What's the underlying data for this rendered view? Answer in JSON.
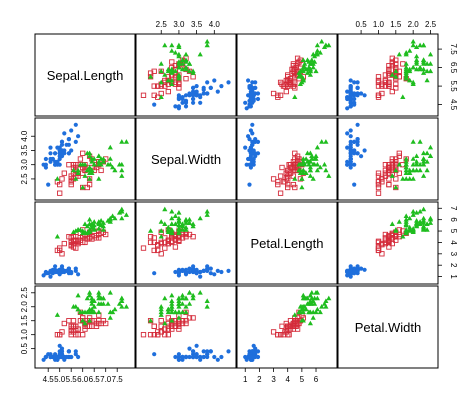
{
  "chart_data": {
    "type": "scatter",
    "layout": "scatterplot-matrix",
    "variables": [
      "Sepal.Length",
      "Sepal.Width",
      "Petal.Length",
      "Petal.Width"
    ],
    "axes": {
      "Sepal.Length": {
        "range": [
          4.1,
          8.1
        ],
        "ticks": [
          4.5,
          5.5,
          6.5,
          7.5
        ],
        "tick_labels": [
          "4.5",
          "5.5",
          "6.5",
          "7.5"
        ]
      },
      "Sepal.Width": {
        "range": [
          1.9,
          4.5
        ],
        "ticks": [
          2.5,
          3.0,
          3.5,
          4.0
        ],
        "tick_labels": [
          "2.5",
          "3.0",
          "3.5",
          "4.0"
        ]
      },
      "Petal.Length": {
        "range": [
          0.7,
          7.2
        ],
        "ticks": [
          1,
          2,
          3,
          4,
          5,
          6,
          7
        ],
        "tick_labels": [
          "1",
          "2",
          "3",
          "4",
          "5",
          "6",
          "7"
        ]
      },
      "Petal.Width": {
        "range": [
          -0.05,
          2.6
        ],
        "ticks": [
          0.5,
          1.0,
          1.5,
          2.0,
          2.5
        ],
        "tick_labels": [
          "0.5",
          "1.0",
          "1.5",
          "2.0",
          "2.5"
        ]
      }
    },
    "tick_sides": {
      "bottom": [
        0,
        2
      ],
      "top": [
        1,
        3
      ],
      "left": [
        1,
        3
      ],
      "right": [
        0,
        2
      ]
    },
    "bottom_tick_labels": {
      "0": [
        "4.5",
        "5.0",
        "5.5",
        "6.0",
        "6.5",
        "7.0",
        "7.5"
      ],
      "2": [
        "1",
        "2",
        "3",
        "4",
        "5",
        "6"
      ]
    },
    "bottom_ticks": {
      "0": [
        4.5,
        5.0,
        5.5,
        6.0,
        6.5,
        7.0,
        7.5
      ],
      "2": [
        1,
        2,
        3,
        4,
        5,
        6
      ]
    },
    "left_tick_labels": {
      "1": [
        "2.5",
        "3.0",
        "3.5",
        "4.0"
      ],
      "3": [
        "0.5",
        "1.0",
        "1.5",
        "2.0",
        "2.5"
      ]
    },
    "right_tick_labels": {
      "0": [
        "4.5",
        "5.5",
        "6.5",
        "7.5"
      ],
      "2": [
        "1",
        "2",
        "3",
        "4",
        "5",
        "6",
        "7"
      ]
    },
    "top_tick_labels": {
      "1": [
        "2.5",
        "3.0",
        "3.5",
        "4.0"
      ],
      "3": [
        "0.5",
        "1.0",
        "1.5",
        "2.0",
        "2.5"
      ]
    },
    "series": [
      {
        "marker": "filled-circle",
        "color": "#1f6fdc",
        "points": [
          [
            5.1,
            3.5,
            1.4,
            0.2
          ],
          [
            4.9,
            3.0,
            1.4,
            0.2
          ],
          [
            4.7,
            3.2,
            1.3,
            0.2
          ],
          [
            4.6,
            3.1,
            1.5,
            0.2
          ],
          [
            5.0,
            3.6,
            1.4,
            0.2
          ],
          [
            5.4,
            3.9,
            1.7,
            0.4
          ],
          [
            4.6,
            3.4,
            1.4,
            0.3
          ],
          [
            5.0,
            3.4,
            1.5,
            0.2
          ],
          [
            4.4,
            2.9,
            1.4,
            0.2
          ],
          [
            4.9,
            3.1,
            1.5,
            0.1
          ],
          [
            5.4,
            3.7,
            1.5,
            0.2
          ],
          [
            4.8,
            3.4,
            1.6,
            0.2
          ],
          [
            4.8,
            3.0,
            1.4,
            0.1
          ],
          [
            4.3,
            3.0,
            1.1,
            0.1
          ],
          [
            5.8,
            4.0,
            1.2,
            0.2
          ],
          [
            5.7,
            4.4,
            1.5,
            0.4
          ],
          [
            5.4,
            3.9,
            1.3,
            0.4
          ],
          [
            5.1,
            3.5,
            1.4,
            0.3
          ],
          [
            5.7,
            3.8,
            1.7,
            0.3
          ],
          [
            5.1,
            3.8,
            1.5,
            0.3
          ],
          [
            5.4,
            3.4,
            1.7,
            0.2
          ],
          [
            5.1,
            3.7,
            1.5,
            0.4
          ],
          [
            4.6,
            3.6,
            1.0,
            0.2
          ],
          [
            5.1,
            3.3,
            1.7,
            0.5
          ],
          [
            4.8,
            3.4,
            1.9,
            0.2
          ],
          [
            5.0,
            3.0,
            1.6,
            0.2
          ],
          [
            5.0,
            3.4,
            1.6,
            0.4
          ],
          [
            5.2,
            3.5,
            1.5,
            0.2
          ],
          [
            5.2,
            3.4,
            1.4,
            0.2
          ],
          [
            4.7,
            3.2,
            1.6,
            0.2
          ],
          [
            4.8,
            3.1,
            1.6,
            0.2
          ],
          [
            5.4,
            3.4,
            1.5,
            0.4
          ],
          [
            5.2,
            4.1,
            1.5,
            0.1
          ],
          [
            5.5,
            4.2,
            1.4,
            0.2
          ],
          [
            4.9,
            3.1,
            1.5,
            0.2
          ],
          [
            5.0,
            3.2,
            1.2,
            0.2
          ],
          [
            5.5,
            3.5,
            1.3,
            0.2
          ],
          [
            4.9,
            3.6,
            1.4,
            0.1
          ],
          [
            4.4,
            3.0,
            1.3,
            0.2
          ],
          [
            5.1,
            3.4,
            1.5,
            0.2
          ],
          [
            5.0,
            3.5,
            1.3,
            0.3
          ],
          [
            4.5,
            2.3,
            1.3,
            0.3
          ],
          [
            4.4,
            3.2,
            1.3,
            0.2
          ],
          [
            5.0,
            3.5,
            1.6,
            0.6
          ],
          [
            5.1,
            3.8,
            1.9,
            0.4
          ],
          [
            4.8,
            3.0,
            1.4,
            0.3
          ],
          [
            5.1,
            3.8,
            1.6,
            0.2
          ],
          [
            4.6,
            3.2,
            1.4,
            0.2
          ],
          [
            5.3,
            3.7,
            1.5,
            0.2
          ],
          [
            5.0,
            3.3,
            1.4,
            0.2
          ]
        ]
      },
      {
        "marker": "open-square",
        "color": "#d42b3a",
        "points": [
          [
            7.0,
            3.2,
            4.7,
            1.4
          ],
          [
            6.4,
            3.2,
            4.5,
            1.5
          ],
          [
            6.9,
            3.1,
            4.9,
            1.5
          ],
          [
            5.5,
            2.3,
            4.0,
            1.3
          ],
          [
            6.5,
            2.8,
            4.6,
            1.5
          ],
          [
            5.7,
            2.8,
            4.5,
            1.3
          ],
          [
            6.3,
            3.3,
            4.7,
            1.6
          ],
          [
            4.9,
            2.4,
            3.3,
            1.0
          ],
          [
            6.6,
            2.9,
            4.6,
            1.3
          ],
          [
            5.2,
            2.7,
            3.9,
            1.4
          ],
          [
            5.0,
            2.0,
            3.5,
            1.0
          ],
          [
            5.9,
            3.0,
            4.2,
            1.5
          ],
          [
            6.0,
            2.2,
            4.0,
            1.0
          ],
          [
            6.1,
            2.9,
            4.7,
            1.4
          ],
          [
            5.6,
            2.9,
            3.6,
            1.3
          ],
          [
            6.7,
            3.1,
            4.4,
            1.4
          ],
          [
            5.6,
            3.0,
            4.5,
            1.5
          ],
          [
            5.8,
            2.7,
            4.1,
            1.0
          ],
          [
            6.2,
            2.2,
            4.5,
            1.5
          ],
          [
            5.6,
            2.5,
            3.9,
            1.1
          ],
          [
            5.9,
            3.2,
            4.8,
            1.8
          ],
          [
            6.1,
            2.8,
            4.0,
            1.3
          ],
          [
            6.3,
            2.5,
            4.9,
            1.5
          ],
          [
            6.1,
            2.8,
            4.7,
            1.2
          ],
          [
            6.4,
            2.9,
            4.3,
            1.3
          ],
          [
            6.6,
            3.0,
            4.4,
            1.4
          ],
          [
            6.8,
            2.8,
            4.8,
            1.4
          ],
          [
            6.7,
            3.0,
            5.0,
            1.7
          ],
          [
            6.0,
            2.9,
            4.5,
            1.5
          ],
          [
            5.7,
            2.6,
            3.5,
            1.0
          ],
          [
            5.5,
            2.4,
            3.8,
            1.1
          ],
          [
            5.5,
            2.4,
            3.7,
            1.0
          ],
          [
            5.8,
            2.7,
            3.9,
            1.2
          ],
          [
            6.0,
            2.7,
            5.1,
            1.6
          ],
          [
            5.4,
            3.0,
            4.5,
            1.5
          ],
          [
            6.0,
            3.4,
            4.5,
            1.6
          ],
          [
            6.7,
            3.1,
            4.7,
            1.5
          ],
          [
            6.3,
            2.3,
            4.4,
            1.3
          ],
          [
            5.6,
            3.0,
            4.1,
            1.3
          ],
          [
            5.5,
            2.5,
            4.0,
            1.3
          ],
          [
            5.5,
            2.6,
            4.4,
            1.2
          ],
          [
            6.1,
            3.0,
            4.6,
            1.4
          ],
          [
            5.8,
            2.6,
            4.0,
            1.2
          ],
          [
            5.0,
            2.3,
            3.3,
            1.0
          ],
          [
            5.6,
            2.7,
            4.2,
            1.3
          ],
          [
            5.7,
            3.0,
            4.2,
            1.2
          ],
          [
            5.7,
            2.9,
            4.2,
            1.3
          ],
          [
            6.2,
            2.9,
            4.3,
            1.3
          ],
          [
            5.1,
            2.5,
            3.0,
            1.1
          ],
          [
            5.7,
            2.8,
            4.1,
            1.3
          ]
        ]
      },
      {
        "marker": "filled-triangle",
        "color": "#1fbd1f",
        "points": [
          [
            6.3,
            3.3,
            6.0,
            2.5
          ],
          [
            5.8,
            2.7,
            5.1,
            1.9
          ],
          [
            7.1,
            3.0,
            5.9,
            2.1
          ],
          [
            6.3,
            2.9,
            5.6,
            1.8
          ],
          [
            6.5,
            3.0,
            5.8,
            2.2
          ],
          [
            7.6,
            3.0,
            6.6,
            2.1
          ],
          [
            4.9,
            2.5,
            4.5,
            1.7
          ],
          [
            7.3,
            2.9,
            6.3,
            1.8
          ],
          [
            6.7,
            2.5,
            5.8,
            1.8
          ],
          [
            7.2,
            3.6,
            6.1,
            2.5
          ],
          [
            6.5,
            3.2,
            5.1,
            2.0
          ],
          [
            6.4,
            2.7,
            5.3,
            1.9
          ],
          [
            6.8,
            3.0,
            5.5,
            2.1
          ],
          [
            5.7,
            2.5,
            5.0,
            2.0
          ],
          [
            5.8,
            2.8,
            5.1,
            2.4
          ],
          [
            6.4,
            3.2,
            5.3,
            2.3
          ],
          [
            6.5,
            3.0,
            5.5,
            1.8
          ],
          [
            7.7,
            3.8,
            6.7,
            2.2
          ],
          [
            7.7,
            2.6,
            6.9,
            2.3
          ],
          [
            6.0,
            2.2,
            5.0,
            1.5
          ],
          [
            6.9,
            3.2,
            5.7,
            2.3
          ],
          [
            5.6,
            2.8,
            4.9,
            2.0
          ],
          [
            7.7,
            2.8,
            6.7,
            2.0
          ],
          [
            6.3,
            2.7,
            4.9,
            1.8
          ],
          [
            6.7,
            3.3,
            5.7,
            2.1
          ],
          [
            7.2,
            3.2,
            6.0,
            1.8
          ],
          [
            6.2,
            2.8,
            4.8,
            1.8
          ],
          [
            6.1,
            3.0,
            4.9,
            1.8
          ],
          [
            6.4,
            2.8,
            5.6,
            2.1
          ],
          [
            7.2,
            3.0,
            5.8,
            1.6
          ],
          [
            7.4,
            2.8,
            6.1,
            1.9
          ],
          [
            7.9,
            3.8,
            6.4,
            2.0
          ],
          [
            6.4,
            2.8,
            5.6,
            2.2
          ],
          [
            6.3,
            2.8,
            5.1,
            1.5
          ],
          [
            6.1,
            2.6,
            5.6,
            1.4
          ],
          [
            7.7,
            3.0,
            6.1,
            2.3
          ],
          [
            6.3,
            3.4,
            5.6,
            2.4
          ],
          [
            6.4,
            3.1,
            5.5,
            1.8
          ],
          [
            6.0,
            3.0,
            4.8,
            1.8
          ],
          [
            6.9,
            3.1,
            5.4,
            2.1
          ],
          [
            6.7,
            3.1,
            5.6,
            2.4
          ],
          [
            6.9,
            3.1,
            5.1,
            2.3
          ],
          [
            5.8,
            2.7,
            5.1,
            1.9
          ],
          [
            6.8,
            3.2,
            5.9,
            2.3
          ],
          [
            6.7,
            3.3,
            5.7,
            2.5
          ],
          [
            6.7,
            3.0,
            5.2,
            2.3
          ],
          [
            6.3,
            2.5,
            5.0,
            1.9
          ],
          [
            6.5,
            3.0,
            5.2,
            2.0
          ],
          [
            6.2,
            3.4,
            5.4,
            2.3
          ],
          [
            5.9,
            3.0,
            5.1,
            1.8
          ]
        ]
      }
    ]
  }
}
